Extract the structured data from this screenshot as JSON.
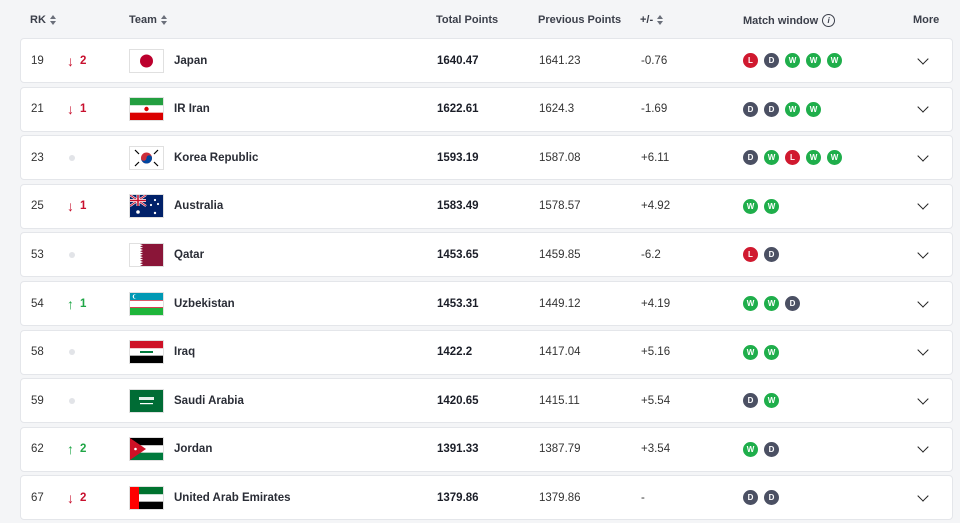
{
  "header": {
    "rk": "RK",
    "team": "Team",
    "total_points": "Total Points",
    "previous_points": "Previous Points",
    "diff": "+/-",
    "match_window": "Match window",
    "more": "More"
  },
  "rows": [
    {
      "rk": "19",
      "move": "down",
      "move_value": "2",
      "team": "Japan",
      "flag": "japan",
      "total": "1640.47",
      "previous": "1641.23",
      "diff": "-0.76",
      "results": [
        "L",
        "D",
        "W",
        "W",
        "W"
      ]
    },
    {
      "rk": "21",
      "move": "down",
      "move_value": "1",
      "team": "IR Iran",
      "flag": "iran",
      "total": "1622.61",
      "previous": "1624.3",
      "diff": "-1.69",
      "results": [
        "D",
        "D",
        "W",
        "W"
      ]
    },
    {
      "rk": "23",
      "move": "none",
      "move_value": "",
      "team": "Korea Republic",
      "flag": "korea",
      "total": "1593.19",
      "previous": "1587.08",
      "diff": "+6.11",
      "results": [
        "D",
        "W",
        "L",
        "W",
        "W"
      ]
    },
    {
      "rk": "25",
      "move": "down",
      "move_value": "1",
      "team": "Australia",
      "flag": "australia",
      "total": "1583.49",
      "previous": "1578.57",
      "diff": "+4.92",
      "results": [
        "W",
        "W"
      ]
    },
    {
      "rk": "53",
      "move": "none",
      "move_value": "",
      "team": "Qatar",
      "flag": "qatar",
      "total": "1453.65",
      "previous": "1459.85",
      "diff": "-6.2",
      "results": [
        "L",
        "D"
      ]
    },
    {
      "rk": "54",
      "move": "up",
      "move_value": "1",
      "team": "Uzbekistan",
      "flag": "uzbekistan",
      "total": "1453.31",
      "previous": "1449.12",
      "diff": "+4.19",
      "results": [
        "W",
        "W",
        "D"
      ]
    },
    {
      "rk": "58",
      "move": "none",
      "move_value": "",
      "team": "Iraq",
      "flag": "iraq",
      "total": "1422.2",
      "previous": "1417.04",
      "diff": "+5.16",
      "results": [
        "W",
        "W"
      ]
    },
    {
      "rk": "59",
      "move": "none",
      "move_value": "",
      "team": "Saudi Arabia",
      "flag": "saudi",
      "total": "1420.65",
      "previous": "1415.11",
      "diff": "+5.54",
      "results": [
        "D",
        "W"
      ]
    },
    {
      "rk": "62",
      "move": "up",
      "move_value": "2",
      "team": "Jordan",
      "flag": "jordan",
      "total": "1391.33",
      "previous": "1387.79",
      "diff": "+3.54",
      "results": [
        "W",
        "D"
      ]
    },
    {
      "rk": "67",
      "move": "down",
      "move_value": "2",
      "team": "United Arab Emirates",
      "flag": "uae",
      "total": "1379.86",
      "previous": "1379.86",
      "diff": "-",
      "results": [
        "D",
        "D"
      ]
    }
  ],
  "colors": {
    "down": "#c8102e",
    "up": "#1fa646",
    "loss": "#d0192f",
    "draw": "#4b5063",
    "win": "#1fae4b"
  }
}
